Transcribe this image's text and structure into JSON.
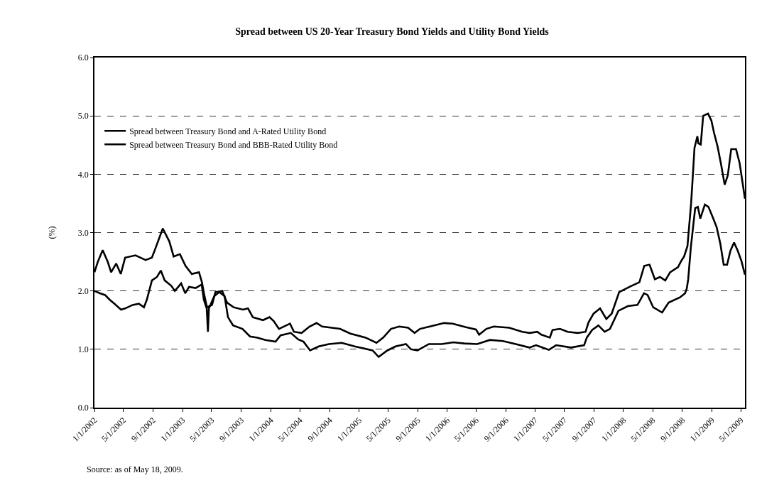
{
  "chart_data": {
    "type": "line",
    "title": "Spread between US 20-Year Treasury Bond Yields and Utility Bond Yields",
    "ylabel": "(%)",
    "annotations": [
      "Source: as of May 18, 2009."
    ],
    "xlim": [
      "2002-01-01",
      "2009-05-18"
    ],
    "xticks": [
      {
        "value": "2002-01-01",
        "label": "1/1/2002"
      },
      {
        "value": "2002-05-01",
        "label": "5/1/2002"
      },
      {
        "value": "2002-09-01",
        "label": "9/1/2002"
      },
      {
        "value": "2003-01-01",
        "label": "1/1/2003"
      },
      {
        "value": "2003-05-01",
        "label": "5/1/2003"
      },
      {
        "value": "2003-09-01",
        "label": "9/1/2003"
      },
      {
        "value": "2004-01-01",
        "label": "1/1/2004"
      },
      {
        "value": "2004-05-01",
        "label": "5/1/2004"
      },
      {
        "value": "2004-09-01",
        "label": "9/1/2004"
      },
      {
        "value": "2005-01-01",
        "label": "1/1/2005"
      },
      {
        "value": "2005-05-01",
        "label": "5/1/2005"
      },
      {
        "value": "2005-09-01",
        "label": "9/1/2005"
      },
      {
        "value": "2006-01-01",
        "label": "1/1/2006"
      },
      {
        "value": "2006-05-01",
        "label": "5/1/2006"
      },
      {
        "value": "2006-09-01",
        "label": "9/1/2006"
      },
      {
        "value": "2007-01-01",
        "label": "1/1/2007"
      },
      {
        "value": "2007-05-01",
        "label": "5/1/2007"
      },
      {
        "value": "2007-09-01",
        "label": "9/1/2007"
      },
      {
        "value": "2008-01-01",
        "label": "1/1/2008"
      },
      {
        "value": "2008-05-01",
        "label": "5/1/2008"
      },
      {
        "value": "2008-09-01",
        "label": "9/1/2008"
      },
      {
        "value": "2009-01-01",
        "label": "1/1/2009"
      },
      {
        "value": "2009-05-01",
        "label": "5/1/2009"
      }
    ],
    "ylim": [
      0,
      6
    ],
    "yticks": [
      {
        "value": 0,
        "label": "0.0"
      },
      {
        "value": 1,
        "label": "1.0"
      },
      {
        "value": 2,
        "label": "2.0"
      },
      {
        "value": 3,
        "label": "3.0"
      },
      {
        "value": 4,
        "label": "4.0"
      },
      {
        "value": 5,
        "label": "5.0"
      },
      {
        "value": 6,
        "label": "6.0"
      }
    ],
    "grid": "y",
    "legend": "top left",
    "series": [
      {
        "name": "Spread between Treasury Bond and A-Rated Utility Bond",
        "color": "#000000",
        "x": [
          "2002-01-01",
          "2002-01-24",
          "2002-02-14",
          "2002-03-05",
          "2002-03-25",
          "2002-04-21",
          "2002-05-08",
          "2002-06-08",
          "2002-07-04",
          "2002-07-25",
          "2002-08-06",
          "2002-08-27",
          "2002-09-17",
          "2002-10-03",
          "2002-10-19",
          "2002-11-15",
          "2002-11-30",
          "2002-12-26",
          "2003-01-12",
          "2003-01-28",
          "2003-02-24",
          "2003-03-21",
          "2003-03-30",
          "2003-04-11",
          "2003-04-16",
          "2003-04-20",
          "2003-05-12",
          "2003-06-02",
          "2003-06-24",
          "2003-07-08",
          "2003-07-29",
          "2003-09-06",
          "2003-10-07",
          "2003-11-07",
          "2003-12-10",
          "2004-01-21",
          "2004-02-11",
          "2004-03-24",
          "2004-04-24",
          "2004-05-16",
          "2004-06-12",
          "2004-07-18",
          "2004-08-29",
          "2004-10-21",
          "2004-12-14",
          "2005-02-26",
          "2005-03-23",
          "2005-04-28",
          "2005-06-01",
          "2005-07-14",
          "2005-08-04",
          "2005-08-31",
          "2005-10-17",
          "2005-12-09",
          "2006-01-26",
          "2006-03-13",
          "2006-05-05",
          "2006-06-27",
          "2006-08-20",
          "2006-10-12",
          "2006-12-07",
          "2007-01-04",
          "2007-02-26",
          "2007-03-28",
          "2007-05-29",
          "2007-07-22",
          "2007-08-02",
          "2007-08-24",
          "2007-09-19",
          "2007-10-15",
          "2007-11-06",
          "2007-12-11",
          "2008-01-19",
          "2008-02-28",
          "2008-03-26",
          "2008-04-10",
          "2008-05-03",
          "2008-06-09",
          "2008-07-06",
          "2008-08-22",
          "2008-09-12",
          "2008-09-19",
          "2008-09-25",
          "2008-10-06",
          "2008-10-18",
          "2008-10-24",
          "2008-11-04",
          "2008-11-14",
          "2008-12-03",
          "2008-12-18",
          "2009-01-06",
          "2009-01-21",
          "2009-02-05",
          "2009-02-19",
          "2009-03-05",
          "2009-03-19",
          "2009-04-03",
          "2009-04-18",
          "2009-05-03",
          "2009-05-18"
        ],
        "values": [
          2.0,
          1.96,
          1.93,
          1.85,
          1.78,
          1.68,
          1.7,
          1.76,
          1.78,
          1.72,
          1.85,
          2.18,
          2.24,
          2.35,
          2.18,
          2.09,
          2.0,
          2.13,
          1.96,
          2.07,
          2.05,
          2.11,
          1.85,
          1.7,
          1.3,
          1.7,
          1.91,
          1.98,
          1.91,
          1.55,
          1.41,
          1.35,
          1.22,
          1.2,
          1.16,
          1.13,
          1.24,
          1.28,
          1.17,
          1.13,
          0.98,
          1.05,
          1.09,
          1.11,
          1.05,
          0.98,
          0.87,
          0.98,
          1.05,
          1.09,
          1.0,
          0.98,
          1.09,
          1.09,
          1.12,
          1.1,
          1.09,
          1.16,
          1.14,
          1.09,
          1.03,
          1.07,
          0.99,
          1.07,
          1.03,
          1.07,
          1.2,
          1.33,
          1.41,
          1.3,
          1.35,
          1.66,
          1.74,
          1.76,
          1.96,
          1.93,
          1.72,
          1.63,
          1.8,
          1.89,
          1.96,
          2.04,
          2.2,
          2.75,
          3.2,
          3.42,
          3.44,
          3.24,
          3.48,
          3.44,
          3.25,
          3.09,
          2.81,
          2.45,
          2.45,
          2.69,
          2.83,
          2.69,
          2.52,
          2.28
        ]
      },
      {
        "name": "Spread between Treasury Bond and BBB-Rated Utility Bond",
        "color": "#000000",
        "x": [
          "2002-01-01",
          "2002-01-15",
          "2002-02-04",
          "2002-02-25",
          "2002-03-11",
          "2002-04-01",
          "2002-04-20",
          "2002-05-08",
          "2002-06-20",
          "2002-08-01",
          "2002-08-27",
          "2002-09-08",
          "2002-10-11",
          "2002-11-07",
          "2002-11-25",
          "2002-12-21",
          "2003-01-13",
          "2003-02-08",
          "2003-03-10",
          "2003-03-22",
          "2003-04-01",
          "2003-04-12",
          "2003-05-03",
          "2003-05-17",
          "2003-06-14",
          "2003-07-04",
          "2003-07-31",
          "2003-09-08",
          "2003-09-29",
          "2003-10-19",
          "2003-11-30",
          "2003-12-27",
          "2004-01-14",
          "2004-02-04",
          "2004-03-21",
          "2004-04-06",
          "2004-05-08",
          "2004-06-10",
          "2004-07-09",
          "2004-08-01",
          "2004-10-14",
          "2004-11-26",
          "2005-01-28",
          "2005-03-14",
          "2005-04-11",
          "2005-05-13",
          "2005-06-16",
          "2005-07-23",
          "2005-08-19",
          "2005-09-10",
          "2005-10-21",
          "2005-12-19",
          "2006-01-24",
          "2006-03-17",
          "2006-04-30",
          "2006-05-13",
          "2006-06-12",
          "2006-07-13",
          "2006-09-15",
          "2006-11-08",
          "2006-12-09",
          "2007-01-09",
          "2007-01-26",
          "2007-03-02",
          "2007-03-13",
          "2007-04-13",
          "2007-05-15",
          "2007-06-26",
          "2007-07-28",
          "2007-08-09",
          "2007-08-30",
          "2007-09-26",
          "2007-10-22",
          "2007-11-13",
          "2007-12-14",
          "2008-01-26",
          "2008-03-07",
          "2008-03-27",
          "2008-04-18",
          "2008-05-10",
          "2008-05-31",
          "2008-06-22",
          "2008-07-12",
          "2008-08-14",
          "2008-08-28",
          "2008-09-08",
          "2008-09-22",
          "2008-10-07",
          "2008-10-15",
          "2008-10-21",
          "2008-11-02",
          "2008-11-06",
          "2008-11-16",
          "2008-11-26",
          "2008-12-16",
          "2008-12-30",
          "2009-01-10",
          "2009-01-25",
          "2009-02-09",
          "2009-02-23",
          "2009-03-08",
          "2009-03-22",
          "2009-04-11",
          "2009-04-26",
          "2009-05-18"
        ],
        "values": [
          2.32,
          2.5,
          2.7,
          2.5,
          2.32,
          2.47,
          2.29,
          2.57,
          2.61,
          2.53,
          2.57,
          2.7,
          3.07,
          2.85,
          2.59,
          2.63,
          2.43,
          2.29,
          2.32,
          2.15,
          1.93,
          1.72,
          1.76,
          1.98,
          2.0,
          1.8,
          1.72,
          1.68,
          1.7,
          1.55,
          1.5,
          1.55,
          1.48,
          1.35,
          1.44,
          1.3,
          1.28,
          1.39,
          1.45,
          1.39,
          1.35,
          1.27,
          1.2,
          1.11,
          1.2,
          1.35,
          1.39,
          1.37,
          1.28,
          1.35,
          1.39,
          1.45,
          1.44,
          1.38,
          1.34,
          1.25,
          1.35,
          1.39,
          1.37,
          1.3,
          1.28,
          1.3,
          1.25,
          1.2,
          1.33,
          1.35,
          1.3,
          1.28,
          1.3,
          1.46,
          1.61,
          1.7,
          1.52,
          1.61,
          1.98,
          2.07,
          2.15,
          2.43,
          2.45,
          2.2,
          2.24,
          2.18,
          2.32,
          2.41,
          2.52,
          2.59,
          2.77,
          3.5,
          4.03,
          4.45,
          4.65,
          4.53,
          4.51,
          5.0,
          5.04,
          4.92,
          4.71,
          4.47,
          4.15,
          3.82,
          3.98,
          4.43,
          4.43,
          4.19,
          3.58
        ]
      }
    ]
  }
}
